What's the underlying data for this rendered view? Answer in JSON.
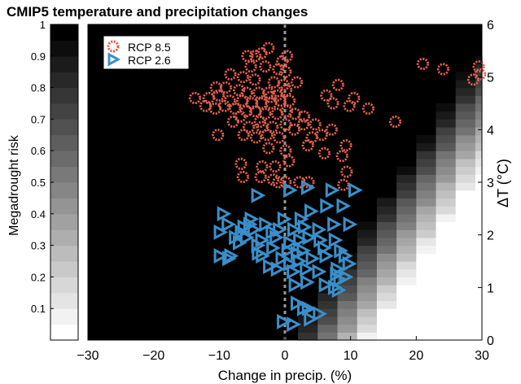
{
  "title": "CMIP5  temperature and precipitation changes",
  "chart_data": {
    "type": "scatter",
    "title": "CMIP5  temperature and precipitation changes",
    "xlabel": "Change in precip. (%)",
    "ylabel_left": "Megadrought risk",
    "ylabel_right": "ΔT (°C)",
    "xlim": [
      -30,
      30
    ],
    "ylim_right": [
      0,
      6
    ],
    "ylim_left": [
      0,
      1
    ],
    "x_ticks": [
      -30,
      -20,
      -10,
      0,
      10,
      20,
      30
    ],
    "x_tick_labels": [
      "−30",
      "−20",
      "−10",
      "0",
      "10",
      "20",
      "30"
    ],
    "right_ticks": [
      0,
      1,
      2,
      3,
      4,
      5,
      6
    ],
    "right_tick_labels": [
      "0",
      "1",
      "2",
      "3",
      "4",
      "5",
      "6"
    ],
    "left_ticks": [
      0.1,
      0.2,
      0.3,
      0.4,
      0.5,
      0.6,
      0.7,
      0.8,
      0.9,
      1
    ],
    "left_tick_labels": [
      "0.1",
      "0.2",
      "0.3",
      "0.4",
      "0.5",
      "0.6",
      "0.7",
      "0.8",
      "0.9",
      "1"
    ],
    "zero_line_x": 0,
    "legend_position": "top-left",
    "background_description": "grayscale heatmap of megadrought risk",
    "heatmap": {
      "x_edges": [
        -34,
        -31,
        -28,
        -25,
        -22,
        -19,
        -16,
        -13,
        -10,
        -7,
        -4,
        -1,
        2,
        5,
        8,
        11,
        14,
        17,
        20,
        23,
        26,
        29,
        30
      ],
      "risk_levels": 20
    },
    "series": [
      {
        "name": "RCP 8.5",
        "marker": "circle",
        "color": "#e0604f",
        "points": [
          [
            -5.7,
            5.4
          ],
          [
            -4.5,
            5.4
          ],
          [
            -3.6,
            5.45
          ],
          [
            -2.5,
            5.55
          ],
          [
            -0.4,
            5.3
          ],
          [
            0.3,
            5.4
          ],
          [
            -5.2,
            5.2
          ],
          [
            -3,
            5.2
          ],
          [
            -1,
            5.15
          ],
          [
            0.1,
            5.1
          ],
          [
            -8.3,
            5.05
          ],
          [
            -6.4,
            5
          ],
          [
            -4.6,
            4.95
          ],
          [
            -1.7,
            4.9
          ],
          [
            -0.2,
            4.85
          ],
          [
            -10.5,
            4.8
          ],
          [
            -9,
            4.8
          ],
          [
            -7,
            4.75
          ],
          [
            -5.8,
            4.7
          ],
          [
            -4,
            4.7
          ],
          [
            -2.5,
            4.7
          ],
          [
            -1.2,
            4.65
          ],
          [
            0.2,
            4.75
          ],
          [
            -13.7,
            4.6
          ],
          [
            -11.6,
            4.6
          ],
          [
            -10.1,
            4.65
          ],
          [
            -8.4,
            4.55
          ],
          [
            -6.5,
            4.55
          ],
          [
            -5,
            4.5
          ],
          [
            -3.6,
            4.5
          ],
          [
            -2.1,
            4.5
          ],
          [
            -0.7,
            4.55
          ],
          [
            0.7,
            4.55
          ],
          [
            -12.1,
            4.45
          ],
          [
            -10.6,
            4.4
          ],
          [
            -9.2,
            4.45
          ],
          [
            -7.6,
            4.4
          ],
          [
            -5.9,
            4.35
          ],
          [
            -4.5,
            4.35
          ],
          [
            -3,
            4.3
          ],
          [
            -1.2,
            4.3
          ],
          [
            0.3,
            4.35
          ],
          [
            1.5,
            4.3
          ],
          [
            2.9,
            4.25
          ],
          [
            -7.9,
            4.15
          ],
          [
            -5.5,
            4.05
          ],
          [
            -3.5,
            4.05
          ],
          [
            -1.9,
            4.05
          ],
          [
            0.1,
            4.1
          ],
          [
            1.4,
            4.0
          ],
          [
            2.8,
            4.1
          ],
          [
            4.6,
            4.1
          ],
          [
            7.1,
            4.0
          ],
          [
            -10.2,
            3.9
          ],
          [
            -6.3,
            3.9
          ],
          [
            -4.4,
            3.85
          ],
          [
            -2.7,
            3.9
          ],
          [
            -0.9,
            3.85
          ],
          [
            4.1,
            3.85
          ],
          [
            5.6,
            3.9
          ],
          [
            -2.5,
            3.65
          ],
          [
            0.1,
            3.6
          ],
          [
            3.5,
            3.7
          ],
          [
            6,
            3.55
          ],
          [
            9.3,
            3.7
          ],
          [
            -6.7,
            3.35
          ],
          [
            -3.5,
            3.3
          ],
          [
            -1.5,
            3.3
          ],
          [
            0.6,
            3.4
          ],
          [
            8.7,
            3.5
          ],
          [
            -6.4,
            3.1
          ],
          [
            -3.7,
            3.1
          ],
          [
            -1.8,
            3.05
          ],
          [
            -1,
            3.0
          ],
          [
            0.1,
            3.0
          ],
          [
            2.2,
            3.0
          ],
          [
            3.6,
            3.0
          ],
          [
            9.4,
            3.2
          ],
          [
            8.9,
            2.95
          ],
          [
            6.3,
            4.65
          ],
          [
            8.1,
            4.85
          ],
          [
            10.5,
            4.6
          ],
          [
            7.3,
            4.5
          ],
          [
            9.8,
            4.45
          ],
          [
            12.7,
            4.4
          ],
          [
            16.8,
            4.15
          ],
          [
            21,
            5.25
          ],
          [
            24.1,
            5.15
          ],
          [
            28.7,
            4.95
          ],
          [
            29.5,
            5.2
          ],
          [
            29.7,
            5.05
          ],
          [
            -2.2,
            4.62
          ],
          [
            -6.8,
            4.25
          ],
          [
            1.8,
            4.9
          ],
          [
            -3.8,
            4.15
          ]
        ]
      },
      {
        "name": "RCP 2.6",
        "marker": "triangle",
        "color": "#3a8fc9",
        "points": [
          [
            -4.2,
            2.75
          ],
          [
            0.7,
            2.85
          ],
          [
            3.4,
            2.9
          ],
          [
            7.1,
            2.85
          ],
          [
            10.6,
            2.85
          ],
          [
            -9.4,
            2.4
          ],
          [
            -5.2,
            2.3
          ],
          [
            -3,
            2.2
          ],
          [
            -0.2,
            2.3
          ],
          [
            2.4,
            2.3
          ],
          [
            3.9,
            2.45
          ],
          [
            6.3,
            2.55
          ],
          [
            8.8,
            2.55
          ],
          [
            -8.7,
            2.2
          ],
          [
            -6.3,
            2.15
          ],
          [
            -4.8,
            2.1
          ],
          [
            -2,
            2.05
          ],
          [
            -0.9,
            2.1
          ],
          [
            1.3,
            2.1
          ],
          [
            2.9,
            2.15
          ],
          [
            5.1,
            2.1
          ],
          [
            7.4,
            2.2
          ],
          [
            9.8,
            2.2
          ],
          [
            -9.9,
            2.05
          ],
          [
            -7.6,
            1.95
          ],
          [
            -6.7,
            2.05
          ],
          [
            -5.9,
            1.95
          ],
          [
            -3.6,
            1.9
          ],
          [
            -1.4,
            1.95
          ],
          [
            0.7,
            1.85
          ],
          [
            2.2,
            1.9
          ],
          [
            3.6,
            1.95
          ],
          [
            5.3,
            1.9
          ],
          [
            7.6,
            1.9
          ],
          [
            -7,
            1.85
          ],
          [
            -4.2,
            1.8
          ],
          [
            -1.9,
            1.75
          ],
          [
            0.4,
            1.7
          ],
          [
            1.8,
            1.65
          ],
          [
            -8.3,
            1.6
          ],
          [
            -3.5,
            1.6
          ],
          [
            -0.5,
            1.55
          ],
          [
            2.7,
            1.7
          ],
          [
            5.9,
            1.75
          ],
          [
            8.4,
            1.7
          ],
          [
            -9.9,
            1.6
          ],
          [
            -8.6,
            1.55
          ],
          [
            -2.4,
            1.4
          ],
          [
            0.7,
            1.45
          ],
          [
            2.1,
            1.5
          ],
          [
            4.1,
            1.55
          ],
          [
            6.2,
            1.6
          ],
          [
            9.1,
            1.6
          ],
          [
            -1.2,
            1.35
          ],
          [
            1.2,
            1.3
          ],
          [
            3.2,
            1.35
          ],
          [
            5.1,
            1.3
          ],
          [
            7.9,
            1.35
          ],
          [
            7.8,
            1.25
          ],
          [
            9.7,
            1.45
          ],
          [
            8.3,
            1.15
          ],
          [
            9.2,
            1.2
          ],
          [
            1.5,
            1.05
          ],
          [
            3.3,
            1.1
          ],
          [
            6.1,
            1.05
          ],
          [
            7.5,
            1.0
          ],
          [
            8.1,
            0.95
          ],
          [
            1.8,
            0.7
          ],
          [
            2.8,
            0.6
          ],
          [
            3.5,
            0.6
          ],
          [
            5.2,
            0.5
          ],
          [
            -0.3,
            0.35
          ],
          [
            1.2,
            0.3
          ],
          [
            3.8,
            0.4
          ],
          [
            -4.1,
            1.65
          ],
          [
            -5.4,
            2.2
          ]
        ]
      }
    ]
  }
}
